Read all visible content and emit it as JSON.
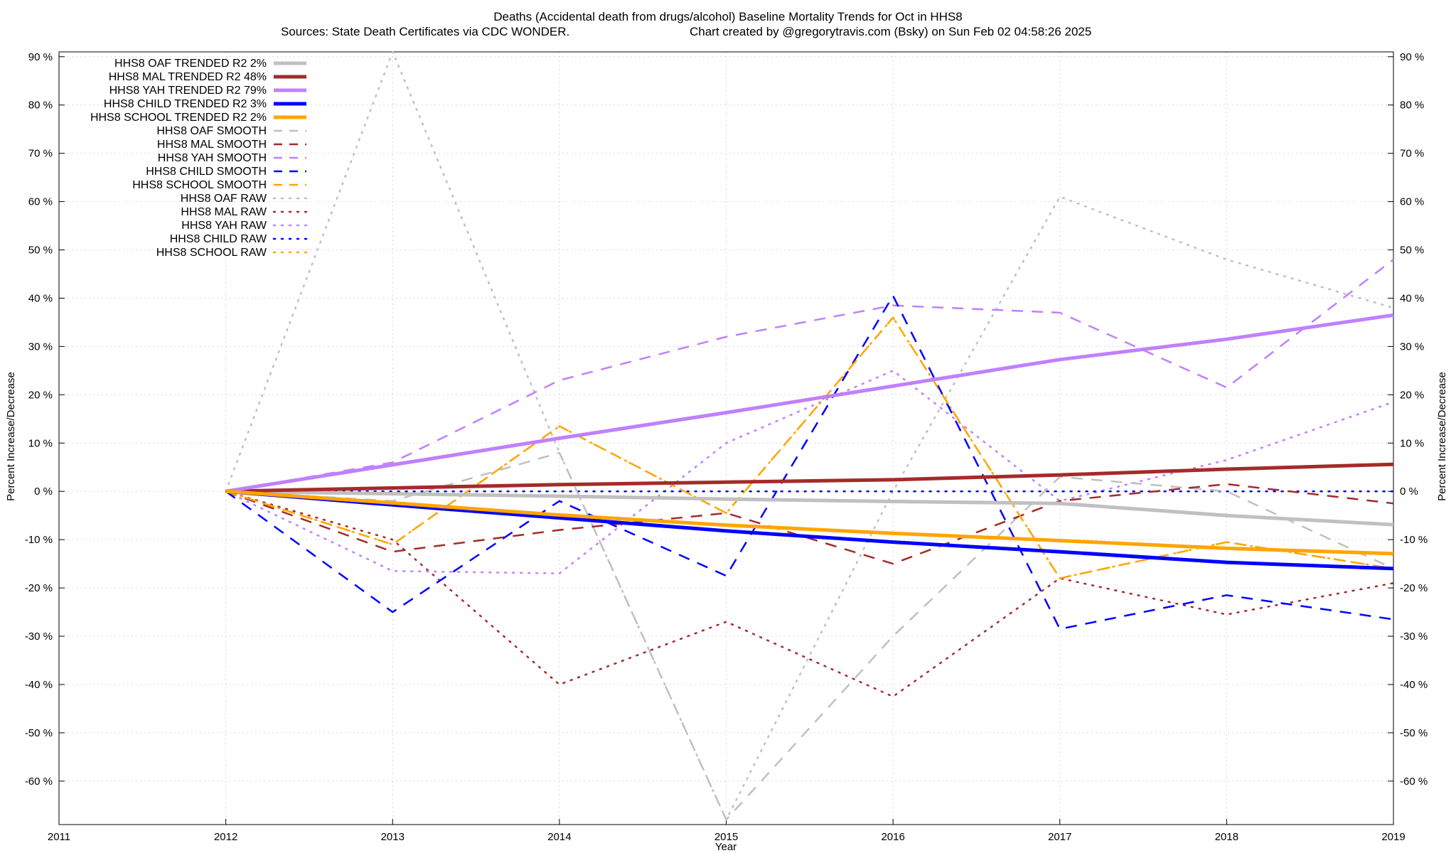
{
  "title": "Deaths (Accidental death from drugs/alcohol)  Baseline Mortality Trends for Oct in HHS8",
  "subtitle_left": "Sources: State Death Certificates via CDC WONDER.",
  "subtitle_right": "Chart created by @gregorytravis.com (Bsky) on Sun Feb 02 04:58:26 2025",
  "chart_data": {
    "type": "line",
    "xlabel": "Year",
    "ylabel": "Percent Increase/Decrease",
    "xlim": [
      2011,
      2019
    ],
    "ylim": [
      -69,
      91
    ],
    "x_ticks": [
      2011,
      2012,
      2013,
      2014,
      2015,
      2016,
      2017,
      2018,
      2019
    ],
    "y_ticks": [
      90,
      80,
      70,
      60,
      50,
      40,
      30,
      20,
      10,
      0,
      -10,
      -20,
      -30,
      -40,
      -50,
      -60
    ],
    "y_tick_suffix": " %",
    "grid": true,
    "legend_position": "top-left",
    "series": [
      {
        "name": "HHS8 OAF TRENDED R2",
        "r2": "2%",
        "style": "solid",
        "color": "#c0c0c0",
        "x": [
          2012,
          2013,
          2014,
          2015,
          2016,
          2017,
          2018,
          2019
        ],
        "y": [
          0,
          -0.5,
          -1.0,
          -1.6,
          -2.1,
          -2.5,
          -5.0,
          -6.9
        ]
      },
      {
        "name": "HHS8 MAL TRENDED R2",
        "r2": "48%",
        "style": "solid",
        "color": "#a52a2a",
        "x": [
          2012,
          2013,
          2014,
          2015,
          2016,
          2017,
          2018,
          2019
        ],
        "y": [
          0,
          0.7,
          1.4,
          1.9,
          2.4,
          3.4,
          4.6,
          5.6
        ]
      },
      {
        "name": "HHS8 YAH TRENDED R2",
        "r2": "79%",
        "style": "solid",
        "color": "#c080ff",
        "x": [
          2012,
          2013,
          2014,
          2015,
          2016,
          2017,
          2018,
          2019
        ],
        "y": [
          0,
          5.5,
          11.0,
          16.3,
          21.8,
          27.3,
          31.5,
          36.5
        ]
      },
      {
        "name": "HHS8 CHILD TRENDED R2",
        "r2": "3%",
        "style": "solid",
        "color": "#0000ff",
        "x": [
          2012,
          2013,
          2014,
          2015,
          2016,
          2017,
          2018,
          2019
        ],
        "y": [
          0,
          -2.8,
          -5.5,
          -8.2,
          -10.5,
          -12.5,
          -14.7,
          -16.0
        ]
      },
      {
        "name": "HHS8 SCHOOL TRENDED R2",
        "r2": "2%",
        "style": "solid",
        "color": "#ffa500",
        "x": [
          2012,
          2013,
          2014,
          2015,
          2016,
          2017,
          2018,
          2019
        ],
        "y": [
          0,
          -2.4,
          -4.9,
          -7.0,
          -8.7,
          -10.2,
          -11.8,
          -12.9
        ]
      },
      {
        "name": "HHS8 OAF SMOOTH",
        "r2": "",
        "style": "dashed",
        "color": "#c0c0c0",
        "x": [
          2012,
          2013,
          2014,
          2015,
          2016,
          2017,
          2018,
          2019
        ],
        "y": [
          0,
          -2.0,
          8.0,
          -68.0,
          -30.0,
          3.0,
          0.0,
          -16.0
        ]
      },
      {
        "name": "HHS8 MAL SMOOTH",
        "r2": "",
        "style": "dashed",
        "color": "#a52a2a",
        "x": [
          2012,
          2013,
          2014,
          2015,
          2016,
          2017,
          2018,
          2019
        ],
        "y": [
          0,
          -12.5,
          -8.0,
          -4.5,
          -15.0,
          -2.0,
          1.5,
          -2.5
        ]
      },
      {
        "name": "HHS8 YAH SMOOTH",
        "r2": "",
        "style": "dashed",
        "color": "#c080ff",
        "x": [
          2012,
          2013,
          2014,
          2015,
          2016,
          2017,
          2018,
          2019
        ],
        "y": [
          0,
          6.0,
          23.0,
          32.0,
          38.5,
          37.0,
          21.5,
          48.0
        ]
      },
      {
        "name": "HHS8 CHILD SMOOTH",
        "r2": "",
        "style": "dashed",
        "color": "#0000ff",
        "x": [
          2012,
          2013,
          2014,
          2015,
          2016,
          2017,
          2018,
          2019
        ],
        "y": [
          0,
          -25.0,
          -2.0,
          -17.5,
          40.5,
          -28.5,
          -21.5,
          -26.5
        ]
      },
      {
        "name": "HHS8 SCHOOL SMOOTH",
        "r2": "",
        "style": "dashed",
        "color": "#ffa500",
        "x": [
          2012,
          2013,
          2014,
          2015,
          2016,
          2017,
          2018,
          2019
        ],
        "y": [
          0,
          -11.0,
          13.5,
          -4.5,
          36.0,
          -18.0,
          -10.5,
          -16.0
        ]
      },
      {
        "name": "HHS8 OAF RAW",
        "r2": "",
        "style": "dotted",
        "color": "#c0c0c0",
        "x": [
          2012,
          2013,
          2014,
          2015,
          2016,
          2017,
          2018,
          2019
        ],
        "y": [
          0,
          91.0,
          8.0,
          -68.0,
          0.0,
          61.0,
          48.0,
          38.0
        ]
      },
      {
        "name": "HHS8 MAL RAW",
        "r2": "",
        "style": "dotted",
        "color": "#a52a2a",
        "x": [
          2012,
          2013,
          2014,
          2015,
          2016,
          2017,
          2018,
          2019
        ],
        "y": [
          0,
          -10.0,
          -40.0,
          -27.0,
          -42.5,
          -18.0,
          -25.5,
          -19.0
        ]
      },
      {
        "name": "HHS8 YAH RAW",
        "r2": "",
        "style": "dotted",
        "color": "#c080ff",
        "x": [
          2012,
          2013,
          2014,
          2015,
          2016,
          2017,
          2018,
          2019
        ],
        "y": [
          0,
          -16.5,
          -17.0,
          10.0,
          25.0,
          -2.0,
          6.5,
          18.5
        ]
      },
      {
        "name": "HHS8 CHILD RAW",
        "r2": "",
        "style": "dotted",
        "color": "#0000ff",
        "x": [
          2012,
          2013,
          2014,
          2015,
          2016,
          2017,
          2018,
          2019
        ],
        "y": [
          0,
          0,
          0,
          0,
          0,
          0,
          0,
          0
        ]
      },
      {
        "name": "HHS8 SCHOOL RAW",
        "r2": "",
        "style": "dotted",
        "color": "#ffa500",
        "x": [
          2012,
          2013,
          2014,
          2015,
          2016,
          2017,
          2018,
          2019
        ],
        "y": [
          0,
          -11.0,
          13.5,
          -4.5,
          36.0,
          -18.0,
          -10.5,
          -16.0
        ]
      }
    ]
  }
}
